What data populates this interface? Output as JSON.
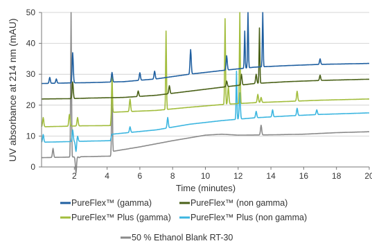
{
  "chart_data": {
    "type": "line",
    "title": "",
    "xlabel": "Time (minutes)",
    "ylabel": "UV absorbance at 214 nm (mAU)",
    "xlim": [
      0,
      20
    ],
    "ylim": [
      0,
      50
    ],
    "x_ticks": [
      2,
      4,
      6,
      8,
      10,
      12,
      14,
      16,
      18,
      20
    ],
    "y_ticks": [
      0,
      10,
      20,
      30,
      40,
      50
    ],
    "grid": "horizontal",
    "legend_position": "bottom",
    "series": [
      {
        "name": "PureFlex™ (gamma)",
        "color": "#1f5fa0",
        "baseline": [
          [
            0,
            27
          ],
          [
            1.7,
            27.2
          ],
          [
            3,
            27.3
          ],
          [
            5,
            27.6
          ],
          [
            7,
            28.5
          ],
          [
            9,
            30
          ],
          [
            11,
            31.2
          ],
          [
            13,
            32.3
          ],
          [
            15,
            32.8
          ],
          [
            17,
            33.2
          ],
          [
            20,
            33.5
          ]
        ],
        "peaks": [
          [
            0.5,
            29
          ],
          [
            0.9,
            28.5
          ],
          [
            1.9,
            37
          ],
          [
            4.3,
            30.6
          ],
          [
            6,
            30.5
          ],
          [
            6.9,
            31
          ],
          [
            9.1,
            38
          ],
          [
            11.3,
            36
          ],
          [
            12.4,
            44
          ],
          [
            12.6,
            50
          ],
          [
            13.5,
            50
          ],
          [
            17,
            35
          ]
        ]
      },
      {
        "name": "PureFlex™ (non gamma)",
        "color": "#4a6118",
        "baseline": [
          [
            0,
            22
          ],
          [
            1.7,
            22.1
          ],
          [
            3,
            22.3
          ],
          [
            5,
            22.5
          ],
          [
            7,
            23.2
          ],
          [
            9,
            24.5
          ],
          [
            11,
            25.8
          ],
          [
            13,
            27
          ],
          [
            15,
            27.6
          ],
          [
            17,
            28
          ],
          [
            20,
            28.4
          ]
        ],
        "peaks": [
          [
            1.9,
            27.5
          ],
          [
            5.9,
            24.6
          ],
          [
            7.8,
            26.3
          ],
          [
            11.3,
            27.8
          ],
          [
            12.2,
            30
          ],
          [
            13.1,
            30
          ],
          [
            13.3,
            45
          ],
          [
            17,
            29.7
          ]
        ]
      },
      {
        "name": "PureFlex™ Plus (gamma)",
        "color": "#a2bd3c",
        "baseline": [
          [
            0,
            13
          ],
          [
            1.7,
            13.2
          ],
          [
            2.3,
            13.3
          ],
          [
            4.2,
            13.4
          ],
          [
            4.3,
            17.7
          ],
          [
            7,
            18.3
          ],
          [
            9,
            19.3
          ],
          [
            11,
            20.2
          ],
          [
            13,
            20.8
          ],
          [
            15,
            21.2
          ],
          [
            17,
            21.6
          ],
          [
            20,
            22
          ]
        ],
        "peaks": [
          [
            0.1,
            16
          ],
          [
            1.7,
            17
          ],
          [
            2.2,
            16
          ],
          [
            4.3,
            30
          ],
          [
            5.4,
            22
          ],
          [
            7.6,
            44
          ],
          [
            11.2,
            48
          ],
          [
            11.4,
            26
          ],
          [
            12.1,
            50
          ],
          [
            13.2,
            23.5
          ],
          [
            13.4,
            22.5
          ],
          [
            15.6,
            24.5
          ]
        ]
      },
      {
        "name": "PureFlex™ Plus (non gamma)",
        "color": "#3cb6e0",
        "baseline": [
          [
            0,
            8
          ],
          [
            1.7,
            8.2
          ],
          [
            2.3,
            8.3
          ],
          [
            4.2,
            8.5
          ],
          [
            4.3,
            10.6
          ],
          [
            7,
            12
          ],
          [
            9,
            13.8
          ],
          [
            11,
            15
          ],
          [
            13,
            15.9
          ],
          [
            15,
            16.5
          ],
          [
            17,
            17
          ],
          [
            20,
            17.5
          ]
        ],
        "peaks": [
          [
            0.1,
            10.5
          ],
          [
            1.9,
            12
          ],
          [
            2.1,
            5
          ],
          [
            2.2,
            10
          ],
          [
            5.4,
            13
          ],
          [
            7.7,
            16
          ],
          [
            11.9,
            31
          ],
          [
            12.1,
            24
          ],
          [
            13.1,
            18
          ],
          [
            14.1,
            18.5
          ],
          [
            15.6,
            19
          ],
          [
            16.8,
            18.5
          ]
        ]
      },
      {
        "name": "50 % Ethanol Blank RT-30",
        "color": "#8a8a8a",
        "baseline": [
          [
            0,
            3
          ],
          [
            1.7,
            3.2
          ],
          [
            2.3,
            3.3
          ],
          [
            4.2,
            3.5
          ],
          [
            4.3,
            5
          ],
          [
            6,
            6.5
          ],
          [
            8,
            8.5
          ],
          [
            10,
            10.3
          ],
          [
            11,
            10.6
          ],
          [
            12,
            10.3
          ],
          [
            14,
            10.4
          ],
          [
            16,
            10.6
          ],
          [
            18,
            11.1
          ],
          [
            20,
            11.4
          ]
        ],
        "peaks": [
          [
            0.7,
            6
          ],
          [
            1.8,
            50
          ],
          [
            2.1,
            -2
          ],
          [
            2.3,
            3
          ],
          [
            4.3,
            30
          ],
          [
            5.4,
            6
          ],
          [
            13.4,
            13.5
          ]
        ]
      }
    ]
  }
}
